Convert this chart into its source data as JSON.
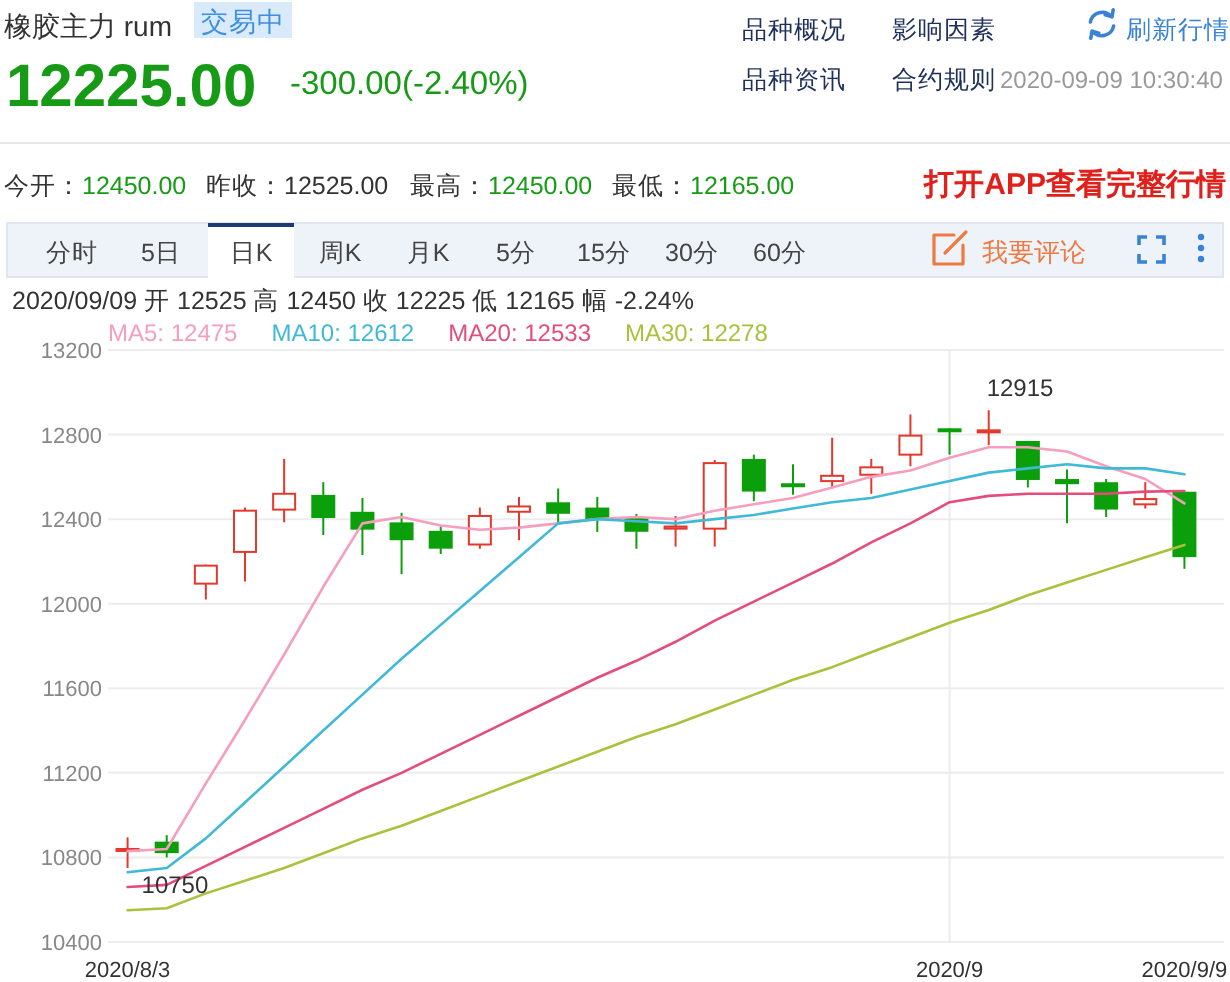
{
  "chart_data": {
    "type": "candlestick",
    "title": "橡胶主力 rum",
    "subtitle": "2020/09/09 开 12525 高 12450 收 12225 低 12165 幅 -2.24%",
    "categories": [
      "2020/8/3",
      null,
      null,
      null,
      null,
      null,
      null,
      null,
      null,
      null,
      null,
      null,
      null,
      null,
      null,
      null,
      null,
      null,
      null,
      null,
      null,
      "2020/9",
      null,
      null,
      null,
      null,
      null,
      "2020/9/9"
    ],
    "ohlc": [
      [
        10835,
        10895,
        10750,
        10840
      ],
      [
        10870,
        10905,
        10800,
        10825
      ],
      [
        12095,
        12185,
        12020,
        12180
      ],
      [
        12245,
        12455,
        12105,
        12440
      ],
      [
        12445,
        12685,
        12385,
        12520
      ],
      [
        12510,
        12575,
        12325,
        12410
      ],
      [
        12430,
        12500,
        12230,
        12355
      ],
      [
        12380,
        12430,
        12140,
        12305
      ],
      [
        12340,
        12365,
        12235,
        12265
      ],
      [
        12280,
        12455,
        12260,
        12415
      ],
      [
        12435,
        12505,
        12300,
        12460
      ],
      [
        12475,
        12545,
        12380,
        12430
      ],
      [
        12450,
        12505,
        12340,
        12405
      ],
      [
        12405,
        12425,
        12260,
        12345
      ],
      [
        12355,
        12415,
        12270,
        12365
      ],
      [
        12355,
        12680,
        12270,
        12665
      ],
      [
        12680,
        12705,
        12485,
        12535
      ],
      [
        12565,
        12660,
        12515,
        12560
      ],
      [
        12580,
        12785,
        12545,
        12605
      ],
      [
        12610,
        12685,
        12520,
        12645
      ],
      [
        12705,
        12895,
        12650,
        12795
      ],
      [
        12825,
        12830,
        12705,
        12820
      ],
      [
        12815,
        12915,
        12750,
        12820
      ],
      [
        12765,
        12770,
        12550,
        12590
      ],
      [
        12585,
        12635,
        12380,
        12570
      ],
      [
        12570,
        12590,
        12410,
        12450
      ],
      [
        12470,
        12575,
        12450,
        12495
      ],
      [
        12525,
        12525,
        12165,
        12225
      ]
    ],
    "colors": [
      "#e2392c",
      "#0c9f0c",
      "#e2392c",
      "#e2392c",
      "#e2392c",
      "#0c9f0c",
      "#0c9f0c",
      "#0c9f0c",
      "#0c9f0c",
      "#e2392c",
      "#e2392c",
      "#0c9f0c",
      "#0c9f0c",
      "#0c9f0c",
      "#e2392c",
      "#e2392c",
      "#0c9f0c",
      "#0c9f0c",
      "#e2392c",
      "#e2392c",
      "#e2392c",
      "#0c9f0c",
      "#e2392c",
      "#0c9f0c",
      "#0c9f0c",
      "#0c9f0c",
      "#e2392c",
      "#0c9f0c"
    ],
    "series": [
      {
        "type": "line",
        "name": "MA5: 12475",
        "color": "#f59ebd",
        "values": [
          10830,
          10840,
          11150,
          11450,
          11760,
          12080,
          12380,
          12410,
          12370,
          12350,
          12360,
          12380,
          12400,
          12410,
          12400,
          12440,
          12470,
          12500,
          12550,
          12600,
          12630,
          12690,
          12740,
          12740,
          12720,
          12650,
          12590,
          12475
        ]
      },
      {
        "type": "line",
        "name": "MA10: 12612",
        "color": "#3fb9d6",
        "values": [
          10730,
          10750,
          10890,
          11060,
          11230,
          11400,
          11570,
          11740,
          11900,
          12060,
          12220,
          12380,
          12400,
          12390,
          12380,
          12400,
          12420,
          12450,
          12480,
          12500,
          12540,
          12580,
          12620,
          12640,
          12660,
          12640,
          12640,
          12612
        ]
      },
      {
        "type": "line",
        "name": "MA20: 12533",
        "color": "#e44d7b",
        "values": [
          10660,
          10670,
          10760,
          10850,
          10940,
          11030,
          11120,
          11200,
          11290,
          11380,
          11470,
          11560,
          11650,
          11730,
          11820,
          11920,
          12010,
          12100,
          12190,
          12290,
          12380,
          12480,
          12510,
          12520,
          12520,
          12520,
          12530,
          12533
        ]
      },
      {
        "type": "line",
        "name": "MA30: 12278",
        "color": "#a8c23c",
        "values": [
          10550,
          10560,
          10630,
          10690,
          10750,
          10820,
          10890,
          10950,
          11020,
          11090,
          11160,
          11230,
          11300,
          11370,
          11430,
          11500,
          11570,
          11640,
          11700,
          11770,
          11840,
          11910,
          11970,
          12040,
          12100,
          12160,
          12220,
          12278
        ]
      }
    ],
    "ylim": [
      10400,
      13200
    ],
    "yticks": [
      10400,
      10800,
      11200,
      11600,
      12000,
      12400,
      12800,
      13200
    ],
    "grid": true,
    "legend": "top left",
    "annotations": [
      {
        "text": "10750",
        "x": "2020/8/3",
        "y": 10750
      },
      "12915",
      "交易中",
      "12225.00",
      "-300.00(-2.40%)",
      "品种概况",
      "影响因素",
      "刷新行情",
      "品种资讯",
      "合约规则",
      "2020-09-09 10:30:40",
      "今开：12450.00",
      "昨收：12525.00",
      "最高：12450.00",
      "最低：12165.00",
      "打开APP查看完整行情",
      "分时",
      "5日",
      "日K",
      "周K",
      "月K",
      "5分",
      "15分",
      "30分",
      "60分",
      "我要评论"
    ]
  }
}
